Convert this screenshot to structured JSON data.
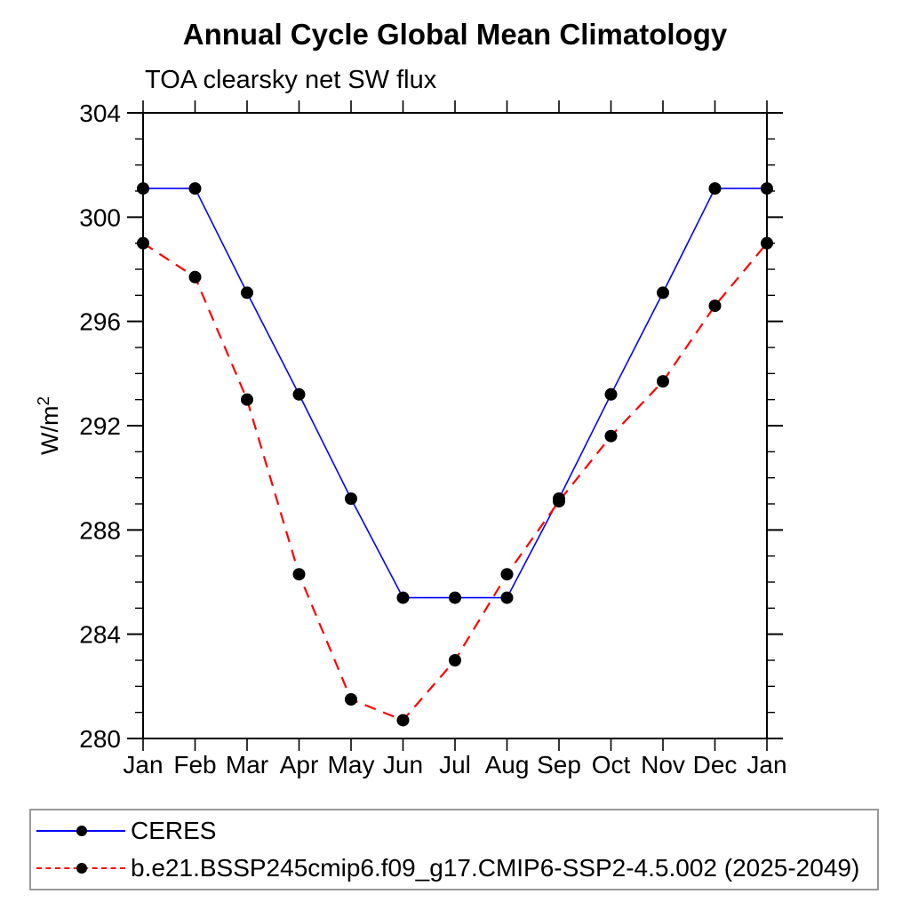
{
  "header": {
    "title": "Annual Cycle Global Mean Climatology",
    "subtitle": "TOA clearsky net SW flux"
  },
  "y_axis": {
    "label_base": "W/m",
    "label_sup": "2"
  },
  "legend": {
    "entries": [
      {
        "label": "CERES",
        "line_color": "#0000ff",
        "line_style": "solid",
        "marker_color": "#000000"
      },
      {
        "label": "b.e21.BSSP245cmip6.f09_g17.CMIP6-SSP2-4.5.002 (2025-2049)",
        "line_color": "#ff0000",
        "line_style": "dashed",
        "marker_color": "#000000"
      }
    ]
  },
  "chart_data": {
    "type": "line",
    "title": "Annual Cycle Global Mean Climatology",
    "subtitle": "TOA clearsky net SW flux",
    "xlabel": "",
    "ylabel": "W/m^2",
    "categories": [
      "Jan",
      "Feb",
      "Mar",
      "Apr",
      "May",
      "Jun",
      "Jul",
      "Aug",
      "Sep",
      "Oct",
      "Nov",
      "Dec",
      "Jan"
    ],
    "series": [
      {
        "name": "CERES",
        "color": "#0000ff",
        "line_style": "solid",
        "marker": "circle",
        "marker_color": "#000000",
        "values": [
          301.1,
          301.1,
          297.1,
          293.2,
          289.2,
          285.4,
          285.4,
          285.4,
          289.2,
          293.2,
          297.1,
          301.1,
          301.1
        ]
      },
      {
        "name": "b.e21.BSSP245cmip6.f09_g17.CMIP6-SSP2-4.5.002 (2025-2049)",
        "color": "#ff0000",
        "line_style": "dashed",
        "marker": "circle",
        "marker_color": "#000000",
        "values": [
          299.0,
          297.7,
          293.0,
          286.3,
          281.5,
          280.7,
          283.0,
          286.3,
          289.1,
          291.6,
          293.7,
          296.6,
          299.0
        ]
      }
    ],
    "ylim": [
      280,
      304
    ],
    "y_major_step": 4,
    "y_minor_step": 1,
    "grid": false,
    "legend_position": "bottom-left",
    "axis_color": "#000000"
  }
}
